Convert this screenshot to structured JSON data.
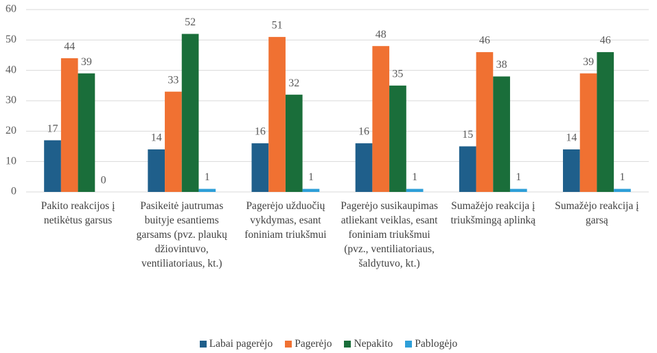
{
  "chart_data": {
    "type": "bar",
    "categories": [
      "Pakito reakcijos į netikėtus garsus",
      "Pasikeitė jautrumas buityje esantiems garsams (pvz. plaukų džiovintuvo, ventiliatoriaus, kt.)",
      "Pagerėjo užduočių vykdymas, esant foniniam triukšmui",
      "Pagerėjo susikaupimas atliekant veiklas, esant foniniam triukšmui (pvz., ventiliatoriaus, šaldytuvo, kt.)",
      "Sumažėjo reakcija į triukšmingą aplinką",
      "Sumažėjo reakcija į garsą"
    ],
    "series": [
      {
        "name": "Labai pagerėjo",
        "color": "#1f5f8b",
        "values": [
          17,
          14,
          16,
          16,
          15,
          14
        ]
      },
      {
        "name": "Pagerėjo",
        "color": "#f07132",
        "values": [
          44,
          33,
          51,
          48,
          46,
          39
        ]
      },
      {
        "name": "Nepakito",
        "color": "#1a6e3a",
        "values": [
          39,
          52,
          32,
          35,
          38,
          46
        ]
      },
      {
        "name": "Pablogėjo",
        "color": "#2e9fd8",
        "values": [
          0,
          1,
          1,
          1,
          1,
          1
        ]
      }
    ],
    "ylim": [
      0,
      60
    ],
    "yticks": [
      0,
      10,
      20,
      30,
      40,
      50,
      60
    ],
    "grid": true,
    "legend": "bottom"
  }
}
